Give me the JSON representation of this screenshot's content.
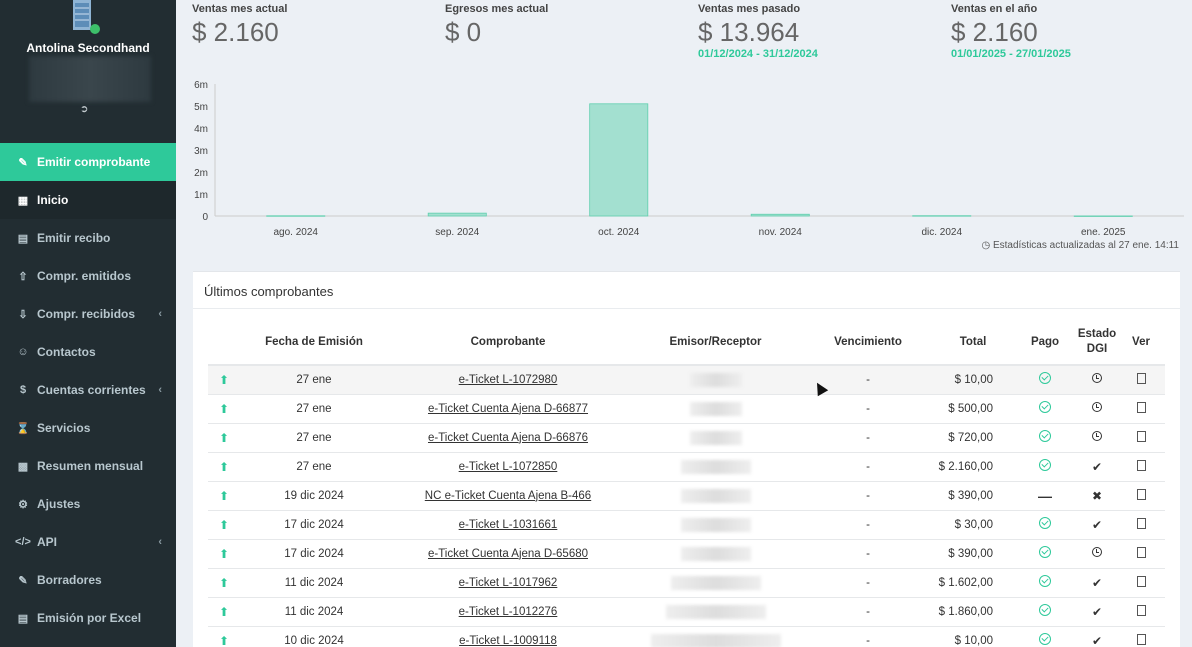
{
  "sidebar": {
    "company": "Antolina Secondhand",
    "logout_icon": "sign-out-icon",
    "items": [
      {
        "label": "Emitir comprobante",
        "icon": "edit-icon",
        "state": "active"
      },
      {
        "label": "Inicio",
        "icon": "dashboard-icon",
        "state": "current"
      },
      {
        "label": "Emitir recibo",
        "icon": "file-icon",
        "state": ""
      },
      {
        "label": "Compr. emitidos",
        "icon": "upload-icon",
        "state": ""
      },
      {
        "label": "Compr. recibidos",
        "icon": "download-icon",
        "state": "",
        "chevron": "‹"
      },
      {
        "label": "Contactos",
        "icon": "users-icon",
        "state": ""
      },
      {
        "label": "Cuentas corrientes",
        "icon": "dollar-icon",
        "state": "",
        "chevron": "‹"
      },
      {
        "label": "Servicios",
        "icon": "hourglass-icon",
        "state": ""
      },
      {
        "label": "Resumen mensual",
        "icon": "bar-chart-icon",
        "state": ""
      },
      {
        "label": "Ajustes",
        "icon": "cogs-icon",
        "state": ""
      },
      {
        "label": "API",
        "icon": "code-icon",
        "state": "",
        "chevron": "‹"
      },
      {
        "label": "Borradores",
        "icon": "pencil-icon",
        "state": ""
      },
      {
        "label": "Emisión por Excel",
        "icon": "excel-icon",
        "state": ""
      }
    ]
  },
  "stats": [
    {
      "label": "Ventas mes actual",
      "value": "$ 2.160",
      "range": ""
    },
    {
      "label": "Egresos mes actual",
      "value": "$ 0",
      "range": ""
    },
    {
      "label": "Ventas mes pasado",
      "value": "$ 13.964",
      "range": "01/12/2024 - 31/12/2024"
    },
    {
      "label": "Ventas en el año",
      "value": "$ 2.160",
      "range": "01/01/2025 - 27/01/2025"
    }
  ],
  "chart_data": {
    "type": "bar",
    "categories": [
      "ago. 2024",
      "sep. 2024",
      "oct. 2024",
      "nov. 2024",
      "dic. 2024",
      "ene. 2025"
    ],
    "values": [
      10000,
      130000,
      5100000,
      80000,
      13964,
      2160
    ],
    "ylim": [
      0,
      6000000
    ],
    "yticks": [
      "0",
      "1m",
      "2m",
      "3m",
      "4m",
      "5m",
      "6m"
    ],
    "bar_color": "#a3e0d0",
    "bar_border": "#5fcfae",
    "grid": false
  },
  "chart_note": "Estadísticas actualizadas al 27 ene. 14:11",
  "table": {
    "title": "Últimos comprobantes",
    "headers": [
      "",
      "Fecha de Emisión",
      "Comprobante",
      "Emisor/Receptor",
      "Vencimiento",
      "Total",
      "Pago",
      "Estado DGI",
      "Ver"
    ],
    "rows": [
      {
        "fecha": "27 ene",
        "comprobante": "e-Ticket L-1072980",
        "venc": "-",
        "total": "$ 10,00",
        "pago": "ok",
        "dgi": "clock"
      },
      {
        "fecha": "27 ene",
        "comprobante": "e-Ticket Cuenta Ajena D-66877",
        "venc": "-",
        "total": "$ 500,00",
        "pago": "ok",
        "dgi": "clock"
      },
      {
        "fecha": "27 ene",
        "comprobante": "e-Ticket Cuenta Ajena D-66876",
        "venc": "-",
        "total": "$ 720,00",
        "pago": "ok",
        "dgi": "clock"
      },
      {
        "fecha": "27 ene",
        "comprobante": "e-Ticket L-1072850",
        "venc": "-",
        "total": "$ 2.160,00",
        "pago": "ok",
        "dgi": "check"
      },
      {
        "fecha": "19 dic 2024",
        "comprobante": "NC e-Ticket Cuenta Ajena B-466",
        "venc": "-",
        "total": "$ 390,00",
        "pago": "minus",
        "dgi": "cross"
      },
      {
        "fecha": "17 dic 2024",
        "comprobante": "e-Ticket L-1031661",
        "venc": "-",
        "total": "$ 30,00",
        "pago": "ok",
        "dgi": "check"
      },
      {
        "fecha": "17 dic 2024",
        "comprobante": "e-Ticket Cuenta Ajena D-65680",
        "venc": "-",
        "total": "$ 390,00",
        "pago": "ok",
        "dgi": "clock"
      },
      {
        "fecha": "11 dic 2024",
        "comprobante": "e-Ticket L-1017962",
        "venc": "-",
        "total": "$ 1.602,00",
        "pago": "ok",
        "dgi": "check"
      },
      {
        "fecha": "11 dic 2024",
        "comprobante": "e-Ticket L-1012276",
        "venc": "-",
        "total": "$ 1.860,00",
        "pago": "ok",
        "dgi": "check"
      },
      {
        "fecha": "10 dic 2024",
        "comprobante": "e-Ticket L-1009118",
        "venc": "-",
        "total": "$ 10,00",
        "pago": "ok",
        "dgi": "check"
      }
    ]
  }
}
